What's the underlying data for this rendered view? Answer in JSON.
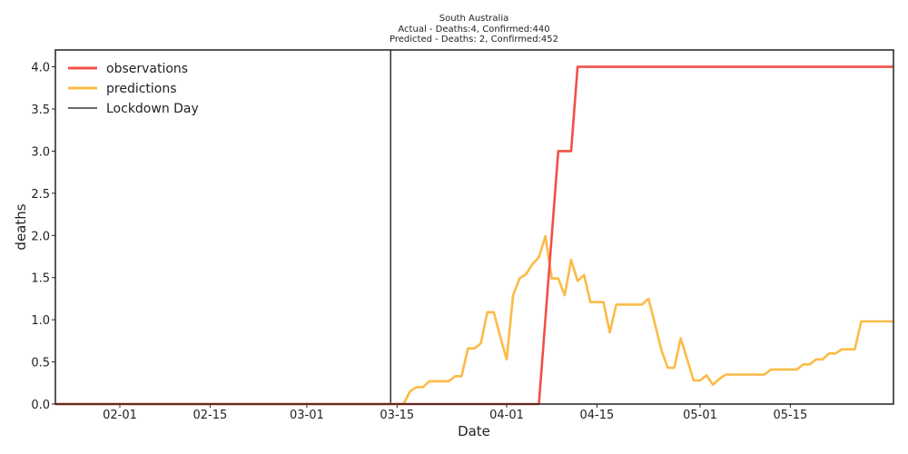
{
  "chart_data": {
    "type": "line",
    "title_lines": [
      "South Australia",
      "Actual - Deaths:4,  Confirmed:440",
      "Predicted - Deaths:  2, Confirmed:452"
    ],
    "xlabel": "Date",
    "ylabel": "deaths",
    "x_range": [
      "2020-01-22",
      "2020-05-31"
    ],
    "ylim": [
      0,
      4.2
    ],
    "x_ticks": [
      "2020-02-01",
      "2020-02-15",
      "2020-03-01",
      "2020-03-15",
      "2020-04-01",
      "2020-04-15",
      "2020-05-01",
      "2020-05-15"
    ],
    "x_tick_labels": [
      "02-01",
      "02-15",
      "03-01",
      "03-15",
      "04-01",
      "04-15",
      "05-01",
      "05-15"
    ],
    "y_ticks": [
      0.0,
      0.5,
      1.0,
      1.5,
      2.0,
      2.5,
      3.0,
      3.5,
      4.0
    ],
    "y_tick_labels": [
      "0.0",
      "0.5",
      "1.0",
      "1.5",
      "2.0",
      "2.5",
      "3.0",
      "3.5",
      "4.0"
    ],
    "lockdown_day": "2020-03-14",
    "legend_position": "top-left",
    "grid": false,
    "series": [
      {
        "name": "observations",
        "color": "#f15048",
        "points": [
          [
            "2020-01-22",
            0
          ],
          [
            "2020-04-06",
            0
          ],
          [
            "2020-04-09",
            3
          ],
          [
            "2020-04-11",
            3
          ],
          [
            "2020-04-12",
            4
          ],
          [
            "2020-05-31",
            4
          ]
        ]
      },
      {
        "name": "predictions",
        "color": "#fbbb45",
        "points": [
          [
            "2020-01-22",
            0
          ],
          [
            "2020-03-16",
            0
          ],
          [
            "2020-03-17",
            0.15
          ],
          [
            "2020-03-18",
            0.2
          ],
          [
            "2020-03-19",
            0.2
          ],
          [
            "2020-03-20",
            0.27
          ],
          [
            "2020-03-22",
            0.27
          ],
          [
            "2020-03-23",
            0.27
          ],
          [
            "2020-03-24",
            0.33
          ],
          [
            "2020-03-25",
            0.33
          ],
          [
            "2020-03-26",
            0.66
          ],
          [
            "2020-03-27",
            0.66
          ],
          [
            "2020-03-28",
            0.72
          ],
          [
            "2020-03-29",
            1.09
          ],
          [
            "2020-03-30",
            1.09
          ],
          [
            "2020-03-31",
            0.8
          ],
          [
            "2020-04-01",
            0.53
          ],
          [
            "2020-04-02",
            1.29
          ],
          [
            "2020-04-03",
            1.49
          ],
          [
            "2020-04-04",
            1.54
          ],
          [
            "2020-04-05",
            1.66
          ],
          [
            "2020-04-06",
            1.74
          ],
          [
            "2020-04-07",
            1.99
          ],
          [
            "2020-04-08",
            1.49
          ],
          [
            "2020-04-09",
            1.49
          ],
          [
            "2020-04-10",
            1.29
          ],
          [
            "2020-04-11",
            1.71
          ],
          [
            "2020-04-12",
            1.46
          ],
          [
            "2020-04-13",
            1.53
          ],
          [
            "2020-04-14",
            1.21
          ],
          [
            "2020-04-15",
            1.21
          ],
          [
            "2020-04-16",
            1.21
          ],
          [
            "2020-04-17",
            0.85
          ],
          [
            "2020-04-18",
            1.18
          ],
          [
            "2020-04-19",
            1.18
          ],
          [
            "2020-04-20",
            1.18
          ],
          [
            "2020-04-21",
            1.18
          ],
          [
            "2020-04-22",
            1.18
          ],
          [
            "2020-04-23",
            1.25
          ],
          [
            "2020-04-24",
            0.95
          ],
          [
            "2020-04-25",
            0.64
          ],
          [
            "2020-04-26",
            0.43
          ],
          [
            "2020-04-27",
            0.43
          ],
          [
            "2020-04-28",
            0.78
          ],
          [
            "2020-04-29",
            0.53
          ],
          [
            "2020-04-30",
            0.28
          ],
          [
            "2020-05-01",
            0.28
          ],
          [
            "2020-05-02",
            0.34
          ],
          [
            "2020-05-03",
            0.23
          ],
          [
            "2020-05-04",
            0.3
          ],
          [
            "2020-05-05",
            0.35
          ],
          [
            "2020-05-11",
            0.35
          ],
          [
            "2020-05-12",
            0.41
          ],
          [
            "2020-05-16",
            0.41
          ],
          [
            "2020-05-17",
            0.47
          ],
          [
            "2020-05-18",
            0.47
          ],
          [
            "2020-05-19",
            0.53
          ],
          [
            "2020-05-20",
            0.53
          ],
          [
            "2020-05-21",
            0.6
          ],
          [
            "2020-05-22",
            0.6
          ],
          [
            "2020-05-23",
            0.65
          ],
          [
            "2020-05-25",
            0.65
          ],
          [
            "2020-05-26",
            0.98
          ],
          [
            "2020-05-31",
            0.98
          ]
        ]
      }
    ],
    "lockdown_legend": {
      "name": "Lockdown Day",
      "color": "#111111"
    }
  }
}
